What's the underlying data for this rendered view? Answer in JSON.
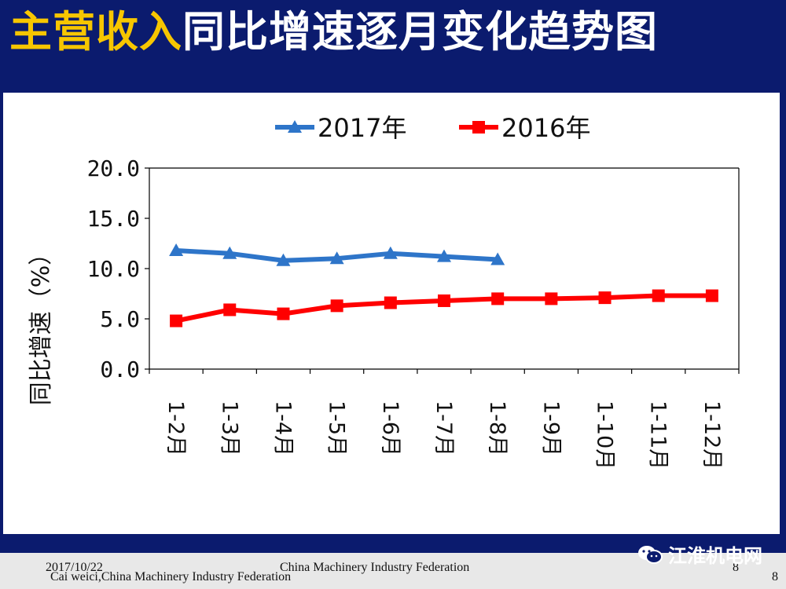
{
  "slide": {
    "title_highlight": "主营收入",
    "title_rest": "同比增速逐月变化趋势图"
  },
  "footer": {
    "date": "2017/10/22",
    "author": "Cai weici,China Machinery Industry Federation",
    "organization": "China Machinery Industry Federation",
    "page_number_inner": "8",
    "page_number_outer": "8"
  },
  "watermark": {
    "text": "江淮机电网",
    "icon": "wechat-icon"
  },
  "colors": {
    "background": "#0b1b6e",
    "title_highlight": "#f7c600",
    "series_2017": "#2e75c9",
    "series_2016": "#ff0000"
  },
  "chart_data": {
    "type": "line",
    "title": "",
    "xlabel": "",
    "ylabel": "同比增速（%）",
    "ylim": [
      0,
      20
    ],
    "yticks": [
      "0.0",
      "5.0",
      "10.0",
      "15.0",
      "20.0"
    ],
    "grid": false,
    "legend_position": "top",
    "categories": [
      "1-2月",
      "1-3月",
      "1-4月",
      "1-5月",
      "1-6月",
      "1-7月",
      "1-8月",
      "1-9月",
      "1-10月",
      "1-11月",
      "1-12月"
    ],
    "series": [
      {
        "name": "2017年",
        "marker": "triangle",
        "color": "#2e75c9",
        "values": [
          11.8,
          11.5,
          10.8,
          11.0,
          11.5,
          11.2,
          10.9,
          null,
          null,
          null,
          null
        ]
      },
      {
        "name": "2016年",
        "marker": "square",
        "color": "#ff0000",
        "values": [
          4.8,
          5.9,
          5.5,
          6.3,
          6.6,
          6.8,
          7.0,
          7.0,
          7.1,
          7.3,
          7.3
        ]
      }
    ]
  }
}
